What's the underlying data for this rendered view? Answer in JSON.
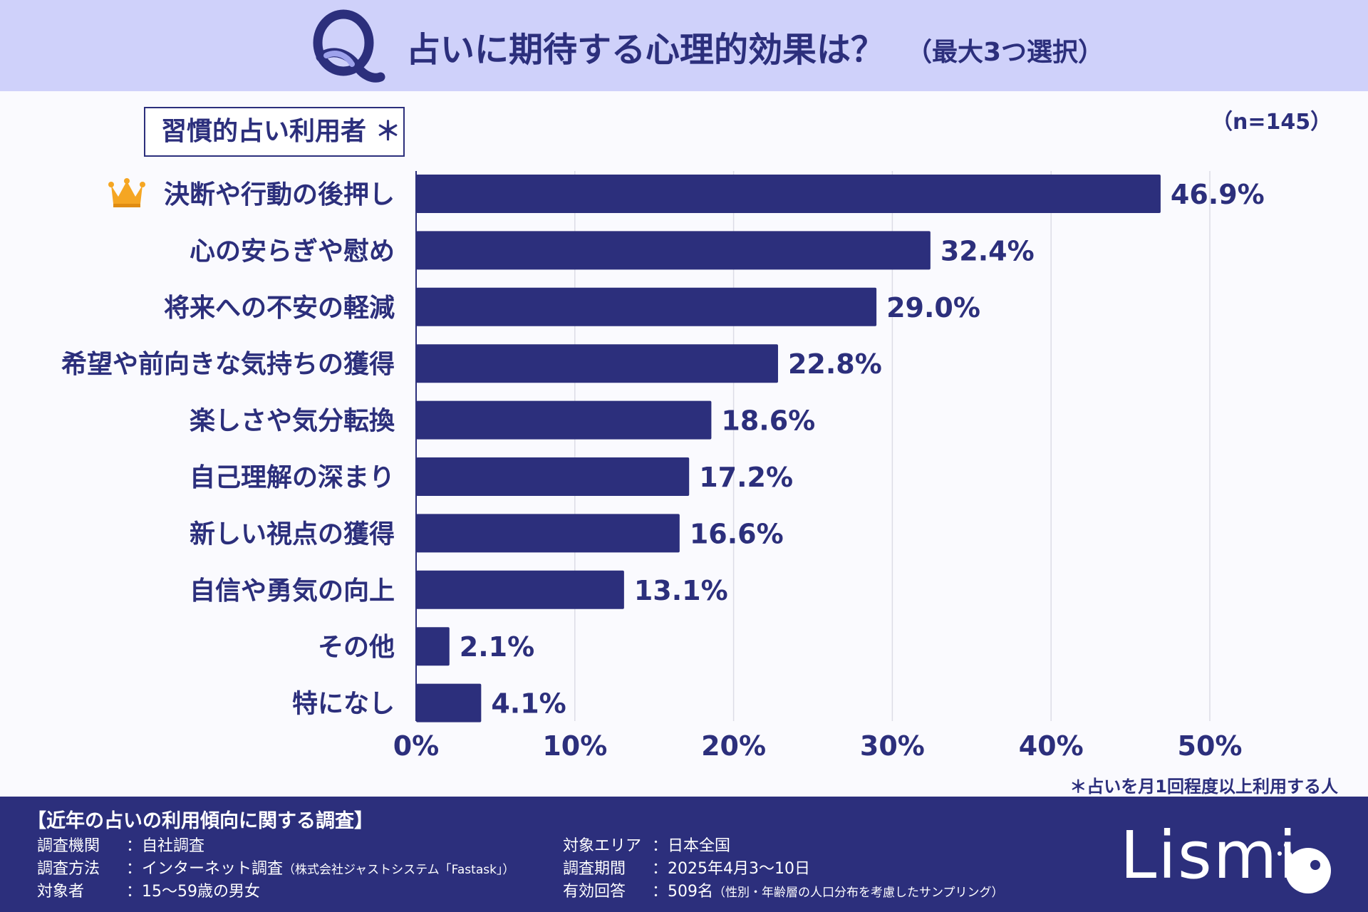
{
  "header": {
    "title": "占いに期待する心理的効果は？",
    "subtitle": "（最大3つ選択）"
  },
  "group_label": "習慣的占い利用者 ＊",
  "sample_size": "（n=145）",
  "footnote": "＊占いを月1回程度以上利用する人",
  "chart_data": {
    "type": "bar",
    "orientation": "horizontal",
    "title": "占いに期待する心理的効果は？",
    "categories": [
      "決断や行動の後押し",
      "心の安らぎや慰め",
      "将来への不安の軽減",
      "希望や前向きな気持ちの獲得",
      "楽しさや気分転換",
      "自己理解の深まり",
      "新しい視点の獲得",
      "自信や勇気の向上",
      "その他",
      "特になし"
    ],
    "values": [
      46.9,
      32.4,
      29.0,
      22.8,
      18.6,
      17.2,
      16.6,
      13.1,
      2.1,
      4.1
    ],
    "value_labels": [
      "46.9%",
      "32.4%",
      "29.0%",
      "22.8%",
      "18.6%",
      "17.2%",
      "16.6%",
      "13.1%",
      "2.1%",
      "4.1%"
    ],
    "xlim": [
      0,
      50
    ],
    "xticks": [
      0,
      10,
      20,
      30,
      40,
      50
    ],
    "xtick_labels": [
      "0%",
      "10%",
      "20%",
      "30%",
      "40%",
      "50%"
    ],
    "grid": true,
    "bar_color": "#2c2f7c"
  },
  "footer": {
    "title": "【近年の占いの利用傾向に関する調査】",
    "rows": [
      {
        "label": "調査機関",
        "value": "：自社調査",
        "note": ""
      },
      {
        "label": "調査方法",
        "value": "：インターネット調査",
        "note": "（株式会社ジャストシステム「Fastask」）"
      },
      {
        "label": "対象者",
        "value": "：15〜59歳の男女",
        "note": ""
      }
    ],
    "rows_right": [
      {
        "label": "対象エリア",
        "value": "：日本全国",
        "note": ""
      },
      {
        "label": "調査期間",
        "value": "：2025年4月3〜10日",
        "note": ""
      },
      {
        "label": "有効回答",
        "value": "：509名",
        "note": "（性別・年齢層の人口分布を考慮したサンプリング）"
      }
    ],
    "logo": "Lismi"
  },
  "colors": {
    "header_bg": "#cfd1fa",
    "navy": "#2c2f7c",
    "crown": "#f5a623"
  }
}
